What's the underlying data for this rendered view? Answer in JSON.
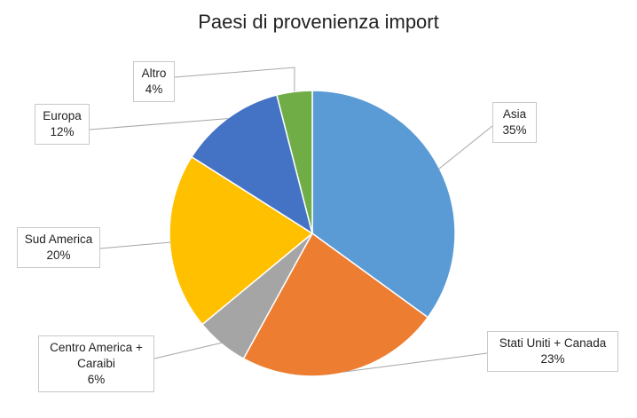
{
  "chart_data": {
    "type": "pie",
    "title": "Paesi di provenienza import",
    "slices": [
      {
        "category_lines": [
          "Asia"
        ],
        "value": 35,
        "value_label": "35%",
        "color": "#5B9BD5"
      },
      {
        "category_lines": [
          "Stati Uniti + Canada"
        ],
        "value": 23,
        "value_label": "23%",
        "color": "#ED7D31"
      },
      {
        "category_lines": [
          "Centro America +",
          "Caraibi"
        ],
        "value": 6,
        "value_label": "6%",
        "color": "#A5A5A5"
      },
      {
        "category_lines": [
          "Sud America"
        ],
        "value": 20,
        "value_label": "20%",
        "color": "#FFC000"
      },
      {
        "category_lines": [
          "Europa"
        ],
        "value": 12,
        "value_label": "12%",
        "color": "#4472C4"
      },
      {
        "category_lines": [
          "Altro"
        ],
        "value": 4,
        "value_label": "4%",
        "color": "#70AD47"
      }
    ],
    "start_angle": "12 o'clock",
    "direction": "clockwise",
    "legend": "none",
    "data_labels": "outside with callout boxes"
  }
}
